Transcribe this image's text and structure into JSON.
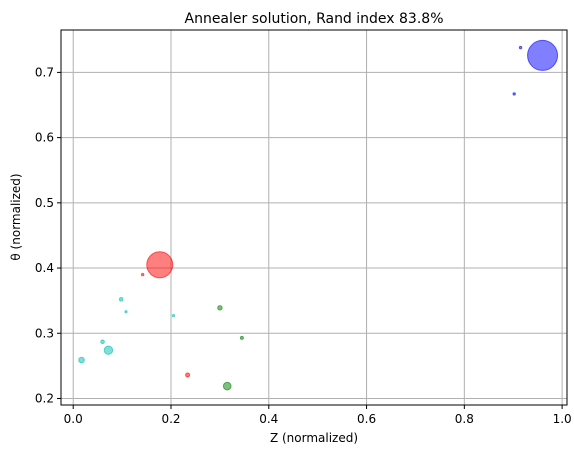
{
  "chart_data": {
    "type": "scatter",
    "title": "Annealer solution, Rand index 83.8%",
    "xlabel": "Z (normalized)",
    "ylabel": "θ (normalized)",
    "xlim": [
      -0.025,
      1.01
    ],
    "ylim": [
      0.19,
      0.765
    ],
    "xticks": [
      0.0,
      0.2,
      0.4,
      0.6,
      0.8,
      1.0
    ],
    "xtick_labels": [
      "0.0",
      "0.2",
      "0.4",
      "0.6",
      "0.8",
      "1.0"
    ],
    "yticks": [
      0.2,
      0.3,
      0.4,
      0.5,
      0.6,
      0.7
    ],
    "ytick_labels": [
      "0.2",
      "0.3",
      "0.4",
      "0.5",
      "0.6",
      "0.7"
    ],
    "grid": true,
    "legend": "none",
    "series": [
      {
        "color": "#0000ff",
        "points": [
          {
            "x": 0.96,
            "y": 0.726,
            "size": 15
          },
          {
            "x": 0.915,
            "y": 0.738,
            "size": 1.2
          },
          {
            "x": 0.902,
            "y": 0.667,
            "size": 1.2
          }
        ]
      },
      {
        "color": "#ff0000",
        "points": [
          {
            "x": 0.177,
            "y": 0.405,
            "size": 13
          },
          {
            "x": 0.142,
            "y": 0.39,
            "size": 1.2
          },
          {
            "x": 0.234,
            "y": 0.236,
            "size": 2
          }
        ]
      },
      {
        "color": "#008000",
        "points": [
          {
            "x": 0.3,
            "y": 0.339,
            "size": 2.2
          },
          {
            "x": 0.345,
            "y": 0.293,
            "size": 1.5
          },
          {
            "x": 0.315,
            "y": 0.219,
            "size": 3.8
          }
        ]
      },
      {
        "color": "#00c0b0",
        "points": [
          {
            "x": 0.098,
            "y": 0.352,
            "size": 1.8
          },
          {
            "x": 0.108,
            "y": 0.333,
            "size": 1.1
          },
          {
            "x": 0.06,
            "y": 0.287,
            "size": 1.8
          },
          {
            "x": 0.072,
            "y": 0.274,
            "size": 4.2
          },
          {
            "x": 0.017,
            "y": 0.259,
            "size": 2.8
          },
          {
            "x": 0.205,
            "y": 0.327,
            "size": 1.1
          }
        ]
      }
    ]
  }
}
